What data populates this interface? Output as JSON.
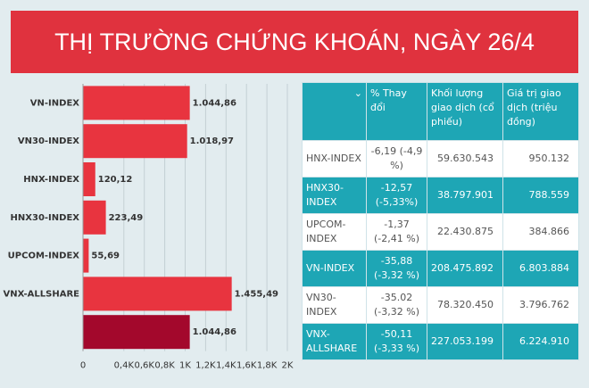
{
  "chart_data": {
    "type": "bar",
    "title": "THỊ TRƯỜNG CHỨNG KHOÁN, NGÀY 26/4",
    "categories": [
      "VN-INDEX",
      "VN30-INDEX",
      "HNX-INDEX",
      "HNX30-INDEX",
      "UPCOM-INDEX",
      "VNX-ALLSHARE",
      null
    ],
    "values": [
      1044.86,
      1018.97,
      120.12,
      223.49,
      55.69,
      1455.49,
      1044.86
    ],
    "value_labels": [
      "1.044,86",
      "1.018,97",
      "120,12",
      "223,49",
      "55,69",
      "1.455,49",
      "1.044,86"
    ],
    "colors": [
      "#e8343f",
      "#e8343f",
      "#e8343f",
      "#e8343f",
      "#e8343f",
      "#e8343f",
      "#a3082c"
    ],
    "xlim": [
      0,
      2000
    ],
    "xticks": [
      0,
      {
        "value": 400,
        "label": "0,4K"
      },
      {
        "value": 600,
        "label": "0,6K"
      },
      {
        "value": 800,
        "label": "0,8K"
      },
      {
        "value": 1000,
        "label": "1K"
      },
      {
        "value": 1200,
        "label": "1,2K"
      },
      {
        "value": 1400,
        "label": "1,4K"
      },
      {
        "value": 1600,
        "label": "1,6K"
      },
      {
        "value": 1800,
        "label": "1,8K"
      },
      {
        "value": 2000,
        "label": "2K"
      }
    ],
    "grid": true
  },
  "table": {
    "header": [
      "% Thay đổi",
      "Khối lượng giao dịch (cổ phiếu)",
      "Giá trị giao dịch (triệu đồng)"
    ],
    "rows": [
      [
        "HNX-INDEX",
        "-6,19 (-4,9 %)",
        "59.630.543",
        "950.132"
      ],
      [
        "HNX30-INDEX",
        "-12,57 (-5,33%)",
        "38.797.901",
        "788.559"
      ],
      [
        "UPCOM-INDEX",
        "-1,37 (-2,41 %)",
        "22.430.875",
        "384.866"
      ],
      [
        "VN-INDEX",
        "-35,88 (-3,32 %)",
        "208.475.892",
        "6.803.884"
      ],
      [
        "VN30-INDEX",
        "-35.02 (-3,32 %)",
        "78.320.450",
        "3.796.762"
      ],
      [
        "VNX-ALLSHARE",
        "-50,11 (-3,33 %)",
        "227.053.199",
        "6.224.910"
      ]
    ]
  }
}
